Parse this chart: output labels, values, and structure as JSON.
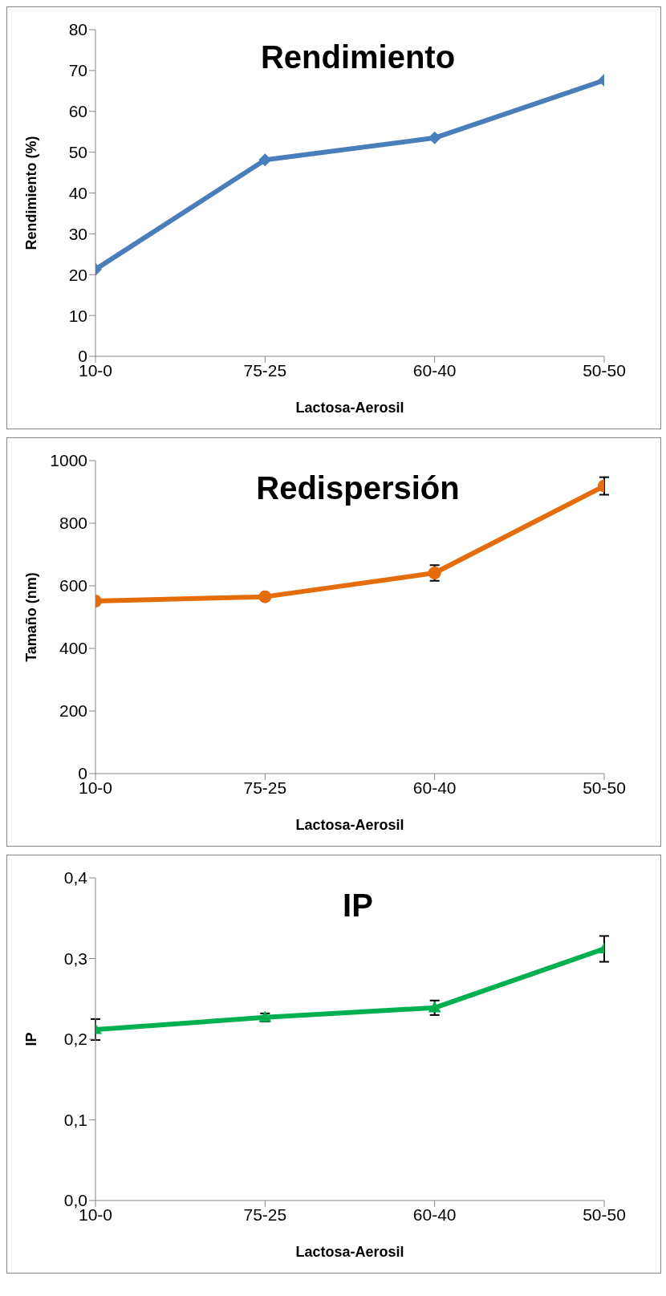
{
  "chart_data": [
    {
      "type": "line",
      "title": "Rendimiento",
      "xlabel": "Lactosa-Aerosil",
      "ylabel": "Rendimiento (%)",
      "categories": [
        "10-0",
        "75-25",
        "60-40",
        "50-50"
      ],
      "series": [
        {
          "color": "#4a7ebb",
          "values": [
            21.3,
            48.1,
            53.5,
            67.6
          ]
        }
      ],
      "ylim": [
        0,
        80
      ],
      "yticks": [
        0,
        10,
        20,
        30,
        40,
        50,
        60,
        70,
        80
      ],
      "marker": "diamond",
      "grid": false,
      "legend": false
    },
    {
      "type": "line",
      "title": "Redispersión",
      "xlabel": "Lactosa-Aerosil",
      "ylabel": "Tamaño (nm)",
      "categories": [
        "10-0",
        "75-25",
        "60-40",
        "50-50"
      ],
      "series": [
        {
          "color": "#e46c0a",
          "values": [
            551,
            565,
            641,
            919
          ],
          "errors": [
            null,
            null,
            25,
            28
          ]
        }
      ],
      "ylim": [
        0,
        1000
      ],
      "yticks": [
        0,
        200,
        400,
        600,
        800,
        1000
      ],
      "marker": "circle",
      "grid": false,
      "legend": false
    },
    {
      "type": "line",
      "title": "IP",
      "xlabel": "Lactosa-Aerosil",
      "ylabel": "IP",
      "categories": [
        "10-0",
        "75-25",
        "60-40",
        "50-50"
      ],
      "series": [
        {
          "color": "#00b050",
          "values": [
            0.212,
            0.227,
            0.239,
            0.312
          ],
          "errors": [
            0.013,
            0.005,
            0.009,
            0.016
          ]
        }
      ],
      "ylim": [
        0,
        0.4
      ],
      "yticks": [
        {
          "value": 0,
          "label": "0,0"
        },
        {
          "value": 0.1,
          "label": "0,1"
        },
        {
          "value": 0.2,
          "label": "0,2"
        },
        {
          "value": 0.3,
          "label": "0,3"
        },
        {
          "value": 0.4,
          "label": "0,4"
        }
      ],
      "marker": "triangle",
      "grid": false,
      "legend": false
    }
  ]
}
